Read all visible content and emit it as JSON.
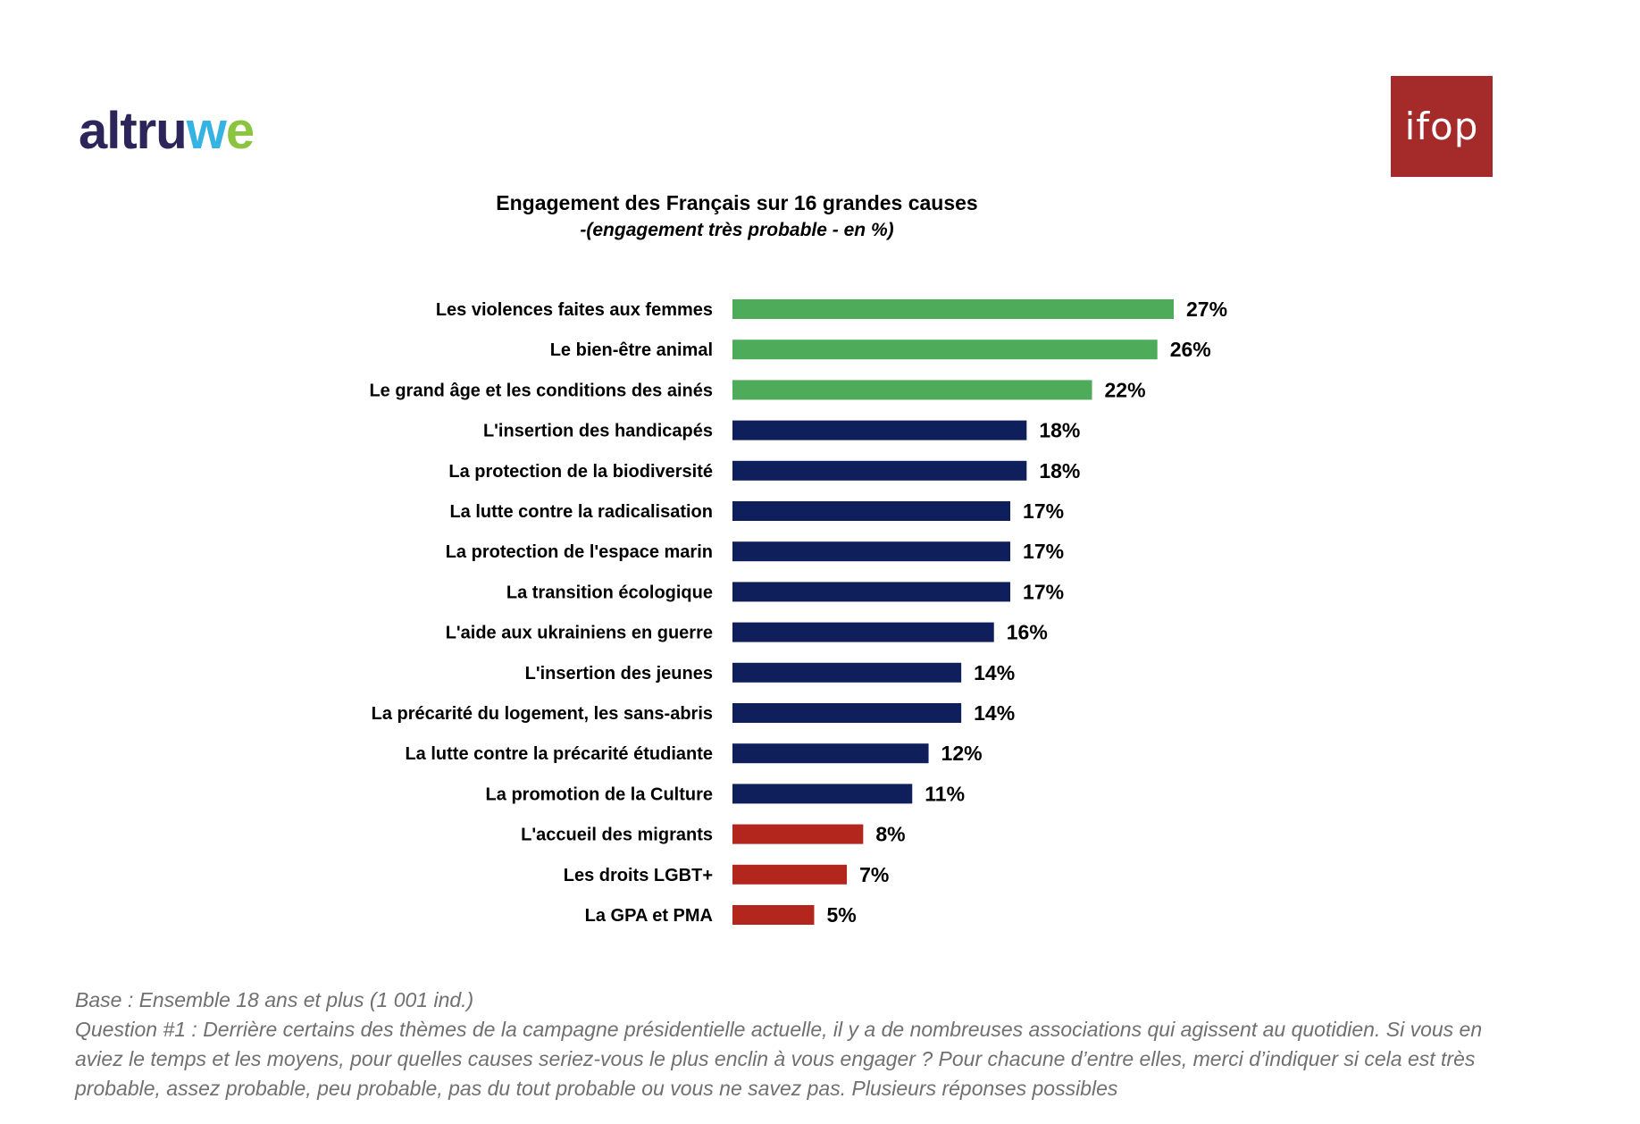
{
  "logos": {
    "altruwe": {
      "part1": "altru",
      "part2": "w",
      "part3": "e",
      "colors": [
        "#2b2559",
        "#37b3e3",
        "#8bc43f"
      ]
    },
    "ifop": {
      "text": "ifop",
      "color": "#a52a2a"
    }
  },
  "chart_data": {
    "type": "bar",
    "orientation": "horizontal",
    "title": "Engagement des Français sur 16 grandes causes",
    "subtitle": "-(engagement très probable - en %)",
    "categories": [
      "Les violences faites aux femmes",
      "Le bien-être animal",
      "Le grand âge et les conditions des ainés",
      "L'insertion des handicapés",
      "La protection de la biodiversité",
      "La lutte contre la radicalisation",
      "La protection de l'espace marin",
      "La transition écologique",
      "L'aide aux ukrainiens en guerre",
      "L'insertion des jeunes",
      "La précarité du logement, les sans-abris",
      "La lutte contre la précarité étudiante",
      "La promotion de la Culture",
      "L'accueil des migrants",
      "Les droits LGBT+",
      "La GPA et PMA"
    ],
    "values": [
      27,
      26,
      22,
      18,
      18,
      17,
      17,
      17,
      16,
      14,
      14,
      12,
      11,
      8,
      7,
      5
    ],
    "value_labels": [
      "27%",
      "26%",
      "22%",
      "18%",
      "18%",
      "17%",
      "17%",
      "17%",
      "16%",
      "14%",
      "14%",
      "12%",
      "11%",
      "8%",
      "7%",
      "5%"
    ],
    "colors": [
      "#4dab5a",
      "#4dab5a",
      "#4dab5a",
      "#0f1f5c",
      "#0f1f5c",
      "#0f1f5c",
      "#0f1f5c",
      "#0f1f5c",
      "#0f1f5c",
      "#0f1f5c",
      "#0f1f5c",
      "#0f1f5c",
      "#0f1f5c",
      "#b3261e",
      "#b3261e",
      "#b3261e"
    ],
    "xlim": [
      0,
      27
    ],
    "grid": false,
    "legend": "none"
  },
  "footer": {
    "base": "Base : Ensemble 18 ans et plus (1 001 ind.)",
    "question": "Question #1 : Derrière certains des thèmes de la campagne présidentielle actuelle, il y a de nombreuses associations qui agissent au quotidien. Si vous en aviez le temps et les moyens, pour quelles causes seriez-vous le plus enclin à vous engager ? Pour chacune d’entre elles, merci d’indiquer si cela est très probable, assez probable, peu probable, pas du tout probable ou vous ne savez pas. Plusieurs réponses possibles"
  }
}
